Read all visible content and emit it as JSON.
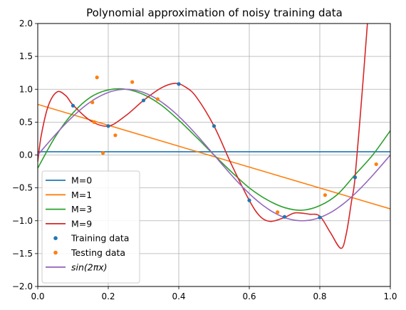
{
  "chart_data": {
    "type": "line",
    "title": "Polynomial approximation of noisy training data",
    "xlabel": "",
    "ylabel": "",
    "xlim": [
      0,
      1
    ],
    "ylim": [
      -2,
      2
    ],
    "grid": true,
    "legend_position": "lower-left",
    "x_ticks": [
      "0.0",
      "0.2",
      "0.4",
      "0.6",
      "0.8",
      "1.0"
    ],
    "y_ticks": [
      "−2.0",
      "−1.5",
      "−1.0",
      "−0.5",
      "0.0",
      "0.5",
      "1.0",
      "1.5",
      "2.0"
    ],
    "series": [
      {
        "name": "M=0",
        "kind": "line",
        "color": "#1f77b4",
        "points": [
          [
            0,
            0.05
          ],
          [
            1,
            0.05
          ]
        ]
      },
      {
        "name": "M=1",
        "kind": "line",
        "color": "#ff7f0e",
        "points": [
          [
            0,
            0.77
          ],
          [
            1,
            -0.82
          ]
        ]
      },
      {
        "name": "M=3",
        "kind": "line",
        "color": "#2ca02c",
        "points": [
          [
            0,
            -0.2
          ],
          [
            0.05,
            0.28
          ],
          [
            0.1,
            0.64
          ],
          [
            0.15,
            0.88
          ],
          [
            0.2,
            0.99
          ],
          [
            0.25,
            1.0
          ],
          [
            0.3,
            0.92
          ],
          [
            0.35,
            0.76
          ],
          [
            0.4,
            0.53
          ],
          [
            0.45,
            0.27
          ],
          [
            0.5,
            0.0
          ],
          [
            0.55,
            -0.26
          ],
          [
            0.6,
            -0.5
          ],
          [
            0.65,
            -0.68
          ],
          [
            0.7,
            -0.8
          ],
          [
            0.75,
            -0.84
          ],
          [
            0.8,
            -0.77
          ],
          [
            0.85,
            -0.6
          ],
          [
            0.9,
            -0.3
          ],
          [
            0.95,
            0.0
          ],
          [
            1.0,
            0.37
          ]
        ]
      },
      {
        "name": "M=9",
        "kind": "line",
        "color": "#d62728",
        "points": [
          [
            0,
            -0.1
          ],
          [
            0.01,
            0.3
          ],
          [
            0.03,
            0.75
          ],
          [
            0.055,
            0.96
          ],
          [
            0.08,
            0.9
          ],
          [
            0.1,
            0.76
          ],
          [
            0.15,
            0.52
          ],
          [
            0.2,
            0.44
          ],
          [
            0.25,
            0.6
          ],
          [
            0.3,
            0.83
          ],
          [
            0.35,
            1.02
          ],
          [
            0.39,
            1.09
          ],
          [
            0.42,
            1.03
          ],
          [
            0.45,
            0.88
          ],
          [
            0.5,
            0.44
          ],
          [
            0.55,
            -0.15
          ],
          [
            0.6,
            -0.69
          ],
          [
            0.63,
            -0.93
          ],
          [
            0.66,
            -1.01
          ],
          [
            0.7,
            -0.95
          ],
          [
            0.73,
            -0.88
          ],
          [
            0.77,
            -0.9
          ],
          [
            0.8,
            -0.93
          ],
          [
            0.83,
            -1.18
          ],
          [
            0.86,
            -1.42
          ],
          [
            0.875,
            -1.2
          ],
          [
            0.89,
            -0.7
          ],
          [
            0.9,
            -0.34
          ],
          [
            0.92,
            0.95
          ],
          [
            0.935,
            2.0
          ]
        ]
      },
      {
        "name": "Training data",
        "kind": "scatter",
        "color": "#1f77b4",
        "points": [
          [
            0.1,
            0.75
          ],
          [
            0.2,
            0.44
          ],
          [
            0.3,
            0.83
          ],
          [
            0.4,
            1.08
          ],
          [
            0.5,
            0.44
          ],
          [
            0.6,
            -0.69
          ],
          [
            0.7,
            -0.94
          ],
          [
            0.8,
            -0.95
          ],
          [
            0.9,
            -0.34
          ]
        ]
      },
      {
        "name": "Testing data",
        "kind": "scatter",
        "color": "#ff7f0e",
        "points": [
          [
            0.155,
            0.8
          ],
          [
            0.168,
            1.18
          ],
          [
            0.16,
            0.5
          ],
          [
            0.185,
            0.03
          ],
          [
            0.22,
            0.3
          ],
          [
            0.268,
            1.11
          ],
          [
            0.34,
            0.85
          ],
          [
            0.68,
            -0.87
          ],
          [
            0.815,
            -0.61
          ],
          [
            0.96,
            -0.14
          ]
        ]
      },
      {
        "name": "sin(2πx)",
        "kind": "function",
        "function": "sin(2*pi*x)",
        "color": "#9467bd"
      }
    ],
    "legend": [
      {
        "label": "M=0",
        "marker": "line",
        "color": "#1f77b4",
        "italic": false
      },
      {
        "label": "M=1",
        "marker": "line",
        "color": "#ff7f0e",
        "italic": false
      },
      {
        "label": "M=3",
        "marker": "line",
        "color": "#2ca02c",
        "italic": false
      },
      {
        "label": "M=9",
        "marker": "line",
        "color": "#d62728",
        "italic": false
      },
      {
        "label": "Training data",
        "marker": "dot",
        "color": "#1f77b4",
        "italic": false
      },
      {
        "label": "Testing data",
        "marker": "dot",
        "color": "#ff7f0e",
        "italic": false
      },
      {
        "label": "sin(2πx)",
        "marker": "line",
        "color": "#9467bd",
        "italic": true
      }
    ]
  }
}
